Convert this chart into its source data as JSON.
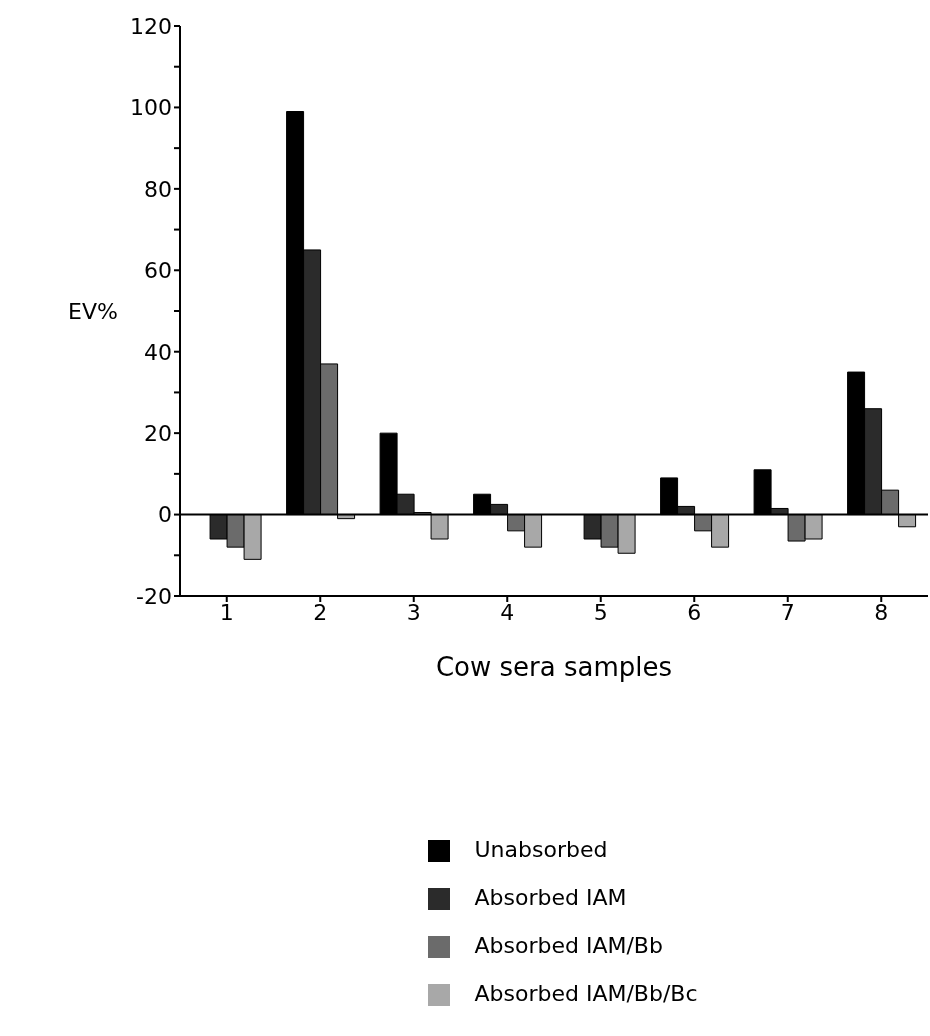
{
  "chart_data": {
    "type": "bar",
    "xlabel": "Cow sera samples",
    "ylabel": "EV%",
    "categories": [
      "1",
      "2",
      "3",
      "4",
      "5",
      "6",
      "7",
      "8"
    ],
    "series": [
      {
        "name": "Unabsorbed",
        "color": "#000000",
        "values": [
          0,
          99,
          20,
          5,
          null,
          9,
          11,
          35
        ]
      },
      {
        "name": "Absorbed IAM",
        "color": "#2b2b2b",
        "values": [
          -6,
          65,
          5,
          2.5,
          -6,
          2,
          1.5,
          26
        ]
      },
      {
        "name": "Absorbed IAM/Bb",
        "color": "#6b6b6b",
        "values": [
          -8,
          37,
          0.5,
          -4,
          -8,
          -4,
          -6.5,
          6
        ]
      },
      {
        "name": "Absorbed IAM/Bb/Bc",
        "color": "#a8a8a8",
        "values": [
          -11,
          -1,
          -6,
          -8,
          -9.5,
          -8,
          -6,
          -3
        ]
      }
    ],
    "ylim": [
      -20,
      120
    ],
    "yticks": [
      -20,
      {
        "value": -10,
        "label": null
      },
      0,
      {
        "value": 10,
        "label": null
      },
      20,
      {
        "value": 30,
        "label": null
      },
      40,
      {
        "value": 50,
        "label": null
      },
      60,
      {
        "value": 70,
        "label": null
      },
      80,
      {
        "value": 90,
        "label": null
      },
      100,
      {
        "value": 110,
        "label": null
      },
      120
    ],
    "ref_lines": [
      {
        "axis": "y",
        "value": 0,
        "color": "#000000"
      }
    ],
    "grid": false,
    "legend": "bottom"
  }
}
